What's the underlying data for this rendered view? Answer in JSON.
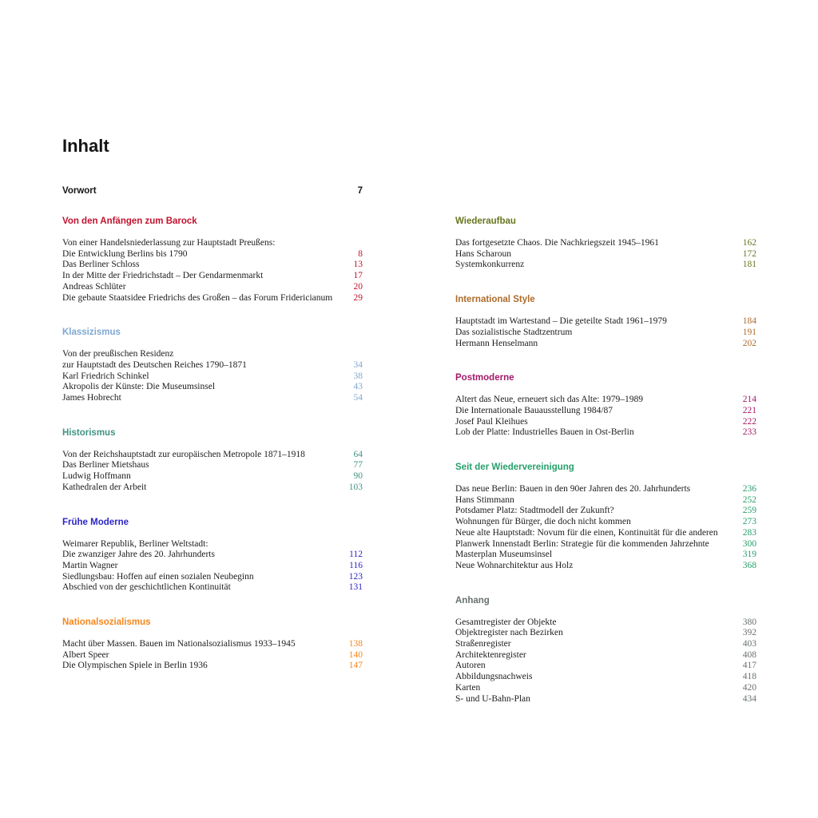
{
  "page_title": "Inhalt",
  "preface": {
    "label": "Vorwort",
    "page": "7"
  },
  "columns": {
    "left": [
      {
        "id": "von-den-anfaengen-zum-barock",
        "heading": "Von den Anfängen zum Barock",
        "color": "#c2122e",
        "entries": [
          {
            "text": "Von einer Handelsniederlassung zur Hauptstadt Preußens:",
            "page": ""
          },
          {
            "text": "Die Entwicklung Berlins bis 1790",
            "page": "8"
          },
          {
            "text": "Das Berliner Schloss",
            "page": "13"
          },
          {
            "text": "In der Mitte der Friedrichstadt – Der Gendarmenmarkt",
            "page": "17"
          },
          {
            "text": "Andreas Schlüter",
            "page": "20"
          },
          {
            "text": "Die gebaute Staatsidee Friedrichs des Großen – das Forum Fridericianum",
            "page": "29"
          }
        ]
      },
      {
        "id": "klassizismus",
        "heading": "Klassizismus",
        "color": "#7fa8d2",
        "entries": [
          {
            "text": "Von der preußischen Residenz",
            "page": ""
          },
          {
            "text": "zur Hauptstadt des Deutschen Reiches 1790–1871",
            "page": "34"
          },
          {
            "text": "Karl Friedrich Schinkel",
            "page": "38"
          },
          {
            "text": "Akropolis der Künste: Die Museumsinsel",
            "page": "43"
          },
          {
            "text": "James Hobrecht",
            "page": "54"
          }
        ]
      },
      {
        "id": "historismus",
        "heading": "Historismus",
        "color": "#3f9483",
        "entries": [
          {
            "text": "Von der Reichshauptstadt zur europäischen Metropole 1871–1918",
            "page": "64"
          },
          {
            "text": "Das Berliner Mietshaus",
            "page": "77"
          },
          {
            "text": "Ludwig Hoffmann",
            "page": "90"
          },
          {
            "text": "Kathedralen der Arbeit",
            "page": "103"
          }
        ]
      },
      {
        "id": "fruehe-moderne",
        "heading": "Frühe Moderne",
        "color": "#2c26c4",
        "entries": [
          {
            "text": "Weimarer Republik, Berliner Weltstadt:",
            "page": ""
          },
          {
            "text": "Die zwanziger Jahre des 20. Jahrhunderts",
            "page": "112"
          },
          {
            "text": "Martin Wagner",
            "page": "116"
          },
          {
            "text": "Siedlungsbau: Hoffen auf einen sozialen Neubeginn",
            "page": "123"
          },
          {
            "text": "Abschied von der geschichtlichen Kontinuität",
            "page": "131"
          }
        ]
      },
      {
        "id": "nationalsozialismus",
        "heading": "Nationalsozialismus",
        "color": "#f5861d",
        "entries": [
          {
            "text": "Macht über Massen. Bauen im Nationalsozialismus 1933–1945",
            "page": "138"
          },
          {
            "text": "Albert Speer",
            "page": "140"
          },
          {
            "text": "Die Olympischen Spiele in Berlin 1936",
            "page": "147"
          }
        ]
      }
    ],
    "right": [
      {
        "id": "wiederaufbau",
        "heading": "Wiederaufbau",
        "color": "#68761f",
        "entries": [
          {
            "text": "Das fortgesetzte Chaos. Die Nachkriegszeit 1945–1961",
            "page": "162"
          },
          {
            "text": "Hans Scharoun",
            "page": "172"
          },
          {
            "text": "Systemkonkurrenz",
            "page": "181"
          }
        ]
      },
      {
        "id": "international-style",
        "heading": "International Style",
        "color": "#ad6b2b",
        "entries": [
          {
            "text": "Hauptstadt im Wartestand – Die geteilte Stadt 1961–1979",
            "page": "184"
          },
          {
            "text": "Das sozialistische Stadtzentrum",
            "page": "191"
          },
          {
            "text": "Hermann Henselmann",
            "page": "202"
          }
        ]
      },
      {
        "id": "postmoderne",
        "heading": "Postmoderne",
        "color": "#a31a68",
        "entries": [
          {
            "text": "Altert das Neue, erneuert sich das Alte: 1979–1989",
            "page": "214"
          },
          {
            "text": "Die Internationale Bauausstellung 1984/87",
            "page": "221"
          },
          {
            "text": "Josef Paul Kleihues",
            "page": "222"
          },
          {
            "text": "Lob der Platte: Industrielles Bauen in Ost-Berlin",
            "page": "233"
          }
        ]
      },
      {
        "id": "seit-der-wiedervereinigung",
        "heading": "Seit der Wiedervereinigung",
        "color": "#27a06a",
        "entries": [
          {
            "text": "Das neue Berlin: Bauen in den 90er Jahren des 20. Jahrhunderts",
            "page": "236"
          },
          {
            "text": "Hans Stimmann",
            "page": "252"
          },
          {
            "text": "Potsdamer Platz: Stadtmodell der Zukunft?",
            "page": "259"
          },
          {
            "text": "Wohnungen für Bürger, die doch nicht kommen",
            "page": "273"
          },
          {
            "text": "Neue alte Hauptstadt: Novum für die einen, Kontinuität für die anderen",
            "page": "283"
          },
          {
            "text": "Planwerk Innenstadt Berlin: Strategie für die kommenden Jahrzehnte",
            "page": "300"
          },
          {
            "text": "Masterplan Museumsinsel",
            "page": "319"
          },
          {
            "text": "Neue Wohnarchitektur aus Holz",
            "page": "368"
          }
        ]
      },
      {
        "id": "anhang",
        "heading": "Anhang",
        "color": "#68716f",
        "entries": [
          {
            "text": "Gesamtregister der Objekte",
            "page": "380"
          },
          {
            "text": "Objektregister nach Bezirken",
            "page": "392"
          },
          {
            "text": "Straßenregister",
            "page": "403"
          },
          {
            "text": "Architektenregister",
            "page": "408"
          },
          {
            "text": "Autoren",
            "page": "417"
          },
          {
            "text": "Abbildungsnachweis",
            "page": "418"
          },
          {
            "text": "Karten",
            "page": "420"
          },
          {
            "text": "S- und U-Bahn-Plan",
            "page": "434"
          }
        ]
      }
    ]
  }
}
